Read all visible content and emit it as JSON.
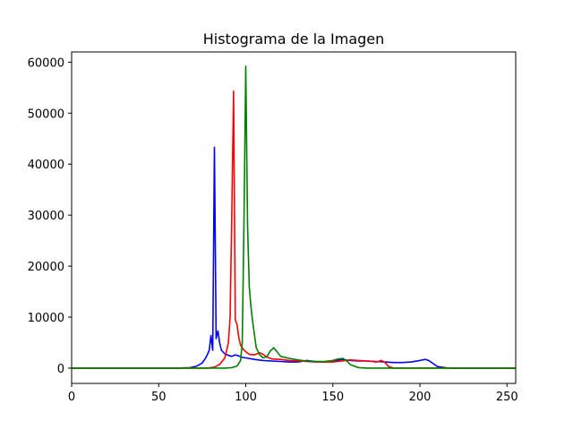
{
  "chart_data": {
    "type": "line",
    "title": "Histograma de la Imagen",
    "xlabel": "",
    "ylabel": "",
    "xlim": [
      0,
      255
    ],
    "ylim": [
      -3000,
      62000
    ],
    "xticks": [
      0,
      50,
      100,
      150,
      200,
      250
    ],
    "yticks": [
      0,
      10000,
      20000,
      30000,
      40000,
      50000,
      60000
    ],
    "grid": false,
    "series": [
      {
        "color": "#0000ff",
        "points": [
          [
            0,
            0
          ],
          [
            60,
            0
          ],
          [
            68,
            100
          ],
          [
            72,
            400
          ],
          [
            75,
            1000
          ],
          [
            77,
            2000
          ],
          [
            78,
            2700
          ],
          [
            79,
            3500
          ],
          [
            80,
            6400
          ],
          [
            81,
            3500
          ],
          [
            82,
            43300
          ],
          [
            83,
            5800
          ],
          [
            84,
            7300
          ],
          [
            85,
            5000
          ],
          [
            86,
            3500
          ],
          [
            88,
            2800
          ],
          [
            90,
            2500
          ],
          [
            92,
            2300
          ],
          [
            94,
            2600
          ],
          [
            96,
            2400
          ],
          [
            98,
            2100
          ],
          [
            100,
            2000
          ],
          [
            105,
            1700
          ],
          [
            110,
            1500
          ],
          [
            115,
            1400
          ],
          [
            120,
            1300
          ],
          [
            125,
            1200
          ],
          [
            130,
            1200
          ],
          [
            135,
            1500
          ],
          [
            140,
            1300
          ],
          [
            145,
            1200
          ],
          [
            150,
            1300
          ],
          [
            155,
            1700
          ],
          [
            160,
            1500
          ],
          [
            165,
            1400
          ],
          [
            170,
            1400
          ],
          [
            175,
            1300
          ],
          [
            180,
            1200
          ],
          [
            185,
            1100
          ],
          [
            190,
            1100
          ],
          [
            195,
            1200
          ],
          [
            200,
            1500
          ],
          [
            203,
            1700
          ],
          [
            205,
            1500
          ],
          [
            208,
            800
          ],
          [
            210,
            300
          ],
          [
            215,
            50
          ],
          [
            220,
            0
          ],
          [
            255,
            0
          ]
        ]
      },
      {
        "color": "#ff0000",
        "points": [
          [
            0,
            0
          ],
          [
            78,
            0
          ],
          [
            82,
            200
          ],
          [
            85,
            700
          ],
          [
            88,
            2000
          ],
          [
            90,
            5000
          ],
          [
            91,
            10000
          ],
          [
            92,
            30000
          ],
          [
            93,
            54300
          ],
          [
            94,
            9500
          ],
          [
            95,
            8500
          ],
          [
            96,
            6000
          ],
          [
            97,
            4500
          ],
          [
            99,
            3500
          ],
          [
            102,
            2700
          ],
          [
            105,
            2600
          ],
          [
            108,
            3000
          ],
          [
            110,
            2700
          ],
          [
            112,
            2200
          ],
          [
            115,
            1800
          ],
          [
            120,
            1700
          ],
          [
            125,
            1500
          ],
          [
            130,
            1400
          ],
          [
            135,
            1300
          ],
          [
            140,
            1200
          ],
          [
            145,
            1200
          ],
          [
            150,
            1200
          ],
          [
            155,
            1400
          ],
          [
            160,
            1600
          ],
          [
            165,
            1500
          ],
          [
            170,
            1400
          ],
          [
            175,
            1200
          ],
          [
            178,
            1500
          ],
          [
            180,
            1100
          ],
          [
            182,
            300
          ],
          [
            185,
            0
          ],
          [
            255,
            0
          ]
        ]
      },
      {
        "color": "#008000",
        "points": [
          [
            0,
            0
          ],
          [
            88,
            0
          ],
          [
            92,
            100
          ],
          [
            95,
            400
          ],
          [
            97,
            1500
          ],
          [
            98,
            5000
          ],
          [
            99,
            30000
          ],
          [
            100,
            59200
          ],
          [
            101,
            28000
          ],
          [
            102,
            16000
          ],
          [
            103,
            12000
          ],
          [
            104,
            9000
          ],
          [
            105,
            6500
          ],
          [
            106,
            4000
          ],
          [
            108,
            2600
          ],
          [
            110,
            2000
          ],
          [
            112,
            2200
          ],
          [
            114,
            3300
          ],
          [
            116,
            4000
          ],
          [
            118,
            3200
          ],
          [
            120,
            2300
          ],
          [
            125,
            1900
          ],
          [
            130,
            1600
          ],
          [
            135,
            1400
          ],
          [
            140,
            1300
          ],
          [
            145,
            1300
          ],
          [
            150,
            1500
          ],
          [
            153,
            1800
          ],
          [
            156,
            1900
          ],
          [
            158,
            1400
          ],
          [
            160,
            700
          ],
          [
            163,
            300
          ],
          [
            165,
            100
          ],
          [
            170,
            0
          ],
          [
            255,
            0
          ]
        ]
      }
    ]
  }
}
